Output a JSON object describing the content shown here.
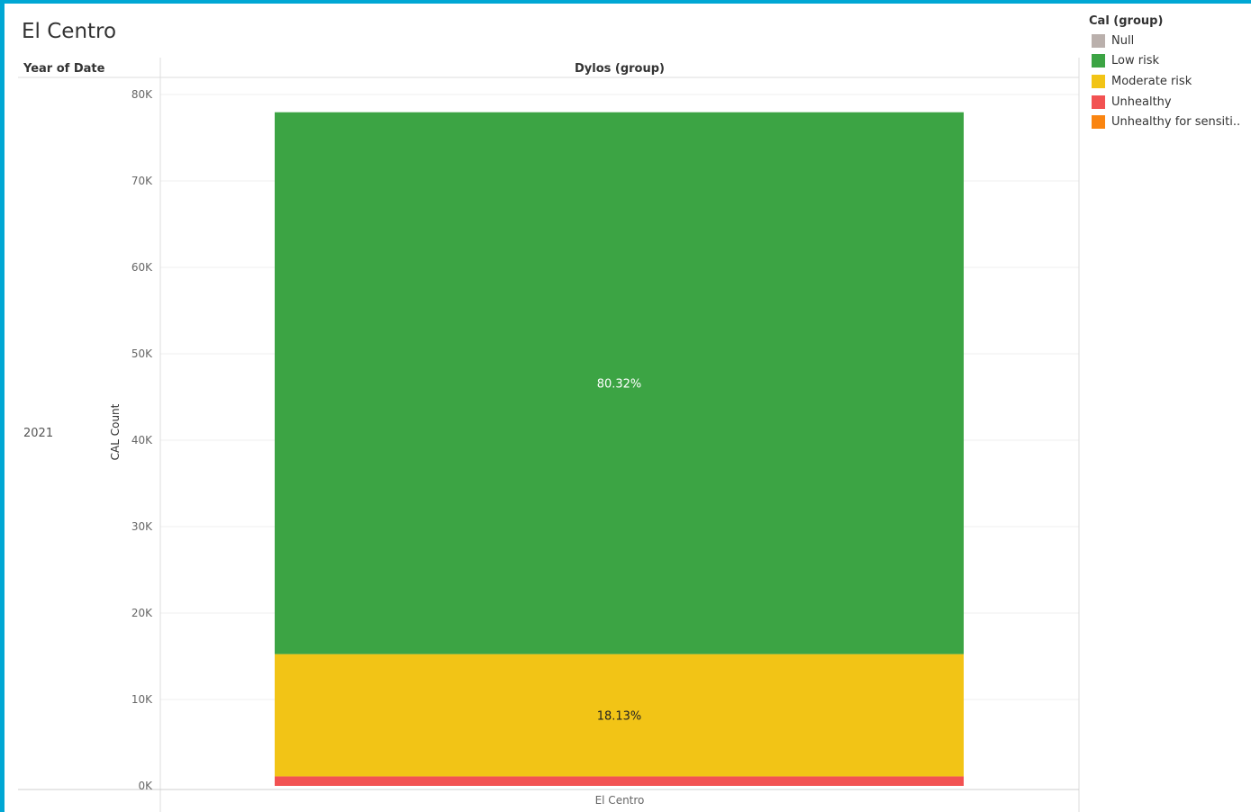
{
  "page": {
    "title": "El Centro"
  },
  "headers": {
    "row": "Year of Date",
    "column": "Dylos (group)"
  },
  "row_label": "2021",
  "legend": {
    "title": "Cal (group)",
    "items": [
      {
        "label": "Null",
        "color": "#bab0ac"
      },
      {
        "label": "Low risk",
        "color": "#3ca444"
      },
      {
        "label": "Moderate risk",
        "color": "#f2c416"
      },
      {
        "label": "Unhealthy",
        "color": "#f25252"
      },
      {
        "label": "Unhealthy for sensiti..",
        "color": "#fa8511"
      }
    ]
  },
  "chart_data": {
    "type": "bar",
    "stacked": true,
    "categories": [
      "El Centro"
    ],
    "ylabel": "CAL Count",
    "ylim": [
      0,
      80000
    ],
    "yticks": [
      0,
      10000,
      20000,
      30000,
      40000,
      50000,
      60000,
      70000,
      80000
    ],
    "ytick_labels": [
      "0K",
      "10K",
      "20K",
      "30K",
      "40K",
      "50K",
      "60K",
      "70K",
      "80K"
    ],
    "grid": true,
    "legend_position": "top-right",
    "series": [
      {
        "name": "Unhealthy",
        "values": [
          1100
        ],
        "color": "#f25252",
        "label": ""
      },
      {
        "name": "Moderate risk",
        "values": [
          14150
        ],
        "color": "#f2c416",
        "label": "18.13%"
      },
      {
        "name": "Low risk",
        "values": [
          62700
        ],
        "color": "#3ca444",
        "label": "80.32%"
      }
    ]
  }
}
